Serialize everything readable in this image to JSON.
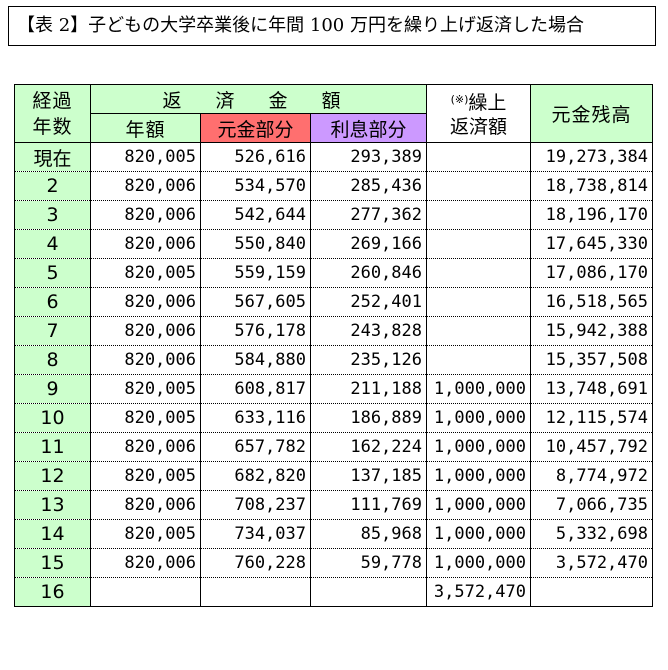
{
  "title": "【表 2】子どもの大学卒業後に年間 100 万円を繰り上げ返済した場合",
  "header": {
    "years_line1": "経過",
    "years_line2": "年数",
    "repay_group": "返 済 金 額",
    "annual": "年額",
    "principal": "元金部分",
    "interest": "利息部分",
    "prepay_mark": "(※)",
    "prepay_line1": "繰上",
    "prepay_line2": "返済額",
    "balance": "元金残高"
  },
  "colors": {
    "header_green": "#ccffcc",
    "principal_red": "#ff6f6f",
    "interest_purple": "#cc99ff"
  },
  "rows": [
    {
      "year": "現在",
      "annual": "820,005",
      "principal": "526,616",
      "interest": "293,389",
      "prepay": "",
      "balance": "19,273,384"
    },
    {
      "year": "2",
      "annual": "820,006",
      "principal": "534,570",
      "interest": "285,436",
      "prepay": "",
      "balance": "18,738,814"
    },
    {
      "year": "3",
      "annual": "820,006",
      "principal": "542,644",
      "interest": "277,362",
      "prepay": "",
      "balance": "18,196,170"
    },
    {
      "year": "4",
      "annual": "820,006",
      "principal": "550,840",
      "interest": "269,166",
      "prepay": "",
      "balance": "17,645,330"
    },
    {
      "year": "5",
      "annual": "820,005",
      "principal": "559,159",
      "interest": "260,846",
      "prepay": "",
      "balance": "17,086,170"
    },
    {
      "year": "6",
      "annual": "820,006",
      "principal": "567,605",
      "interest": "252,401",
      "prepay": "",
      "balance": "16,518,565"
    },
    {
      "year": "7",
      "annual": "820,006",
      "principal": "576,178",
      "interest": "243,828",
      "prepay": "",
      "balance": "15,942,388"
    },
    {
      "year": "8",
      "annual": "820,006",
      "principal": "584,880",
      "interest": "235,126",
      "prepay": "",
      "balance": "15,357,508"
    },
    {
      "year": "9",
      "annual": "820,005",
      "principal": "608,817",
      "interest": "211,188",
      "prepay": "1,000,000",
      "balance": "13,748,691"
    },
    {
      "year": "10",
      "annual": "820,005",
      "principal": "633,116",
      "interest": "186,889",
      "prepay": "1,000,000",
      "balance": "12,115,574"
    },
    {
      "year": "11",
      "annual": "820,006",
      "principal": "657,782",
      "interest": "162,224",
      "prepay": "1,000,000",
      "balance": "10,457,792"
    },
    {
      "year": "12",
      "annual": "820,005",
      "principal": "682,820",
      "interest": "137,185",
      "prepay": "1,000,000",
      "balance": "8,774,972"
    },
    {
      "year": "13",
      "annual": "820,006",
      "principal": "708,237",
      "interest": "111,769",
      "prepay": "1,000,000",
      "balance": "7,066,735"
    },
    {
      "year": "14",
      "annual": "820,005",
      "principal": "734,037",
      "interest": "85,968",
      "prepay": "1,000,000",
      "balance": "5,332,698"
    },
    {
      "year": "15",
      "annual": "820,006",
      "principal": "760,228",
      "interest": "59,778",
      "prepay": "1,000,000",
      "balance": "3,572,470"
    },
    {
      "year": "16",
      "annual": "",
      "principal": "",
      "interest": "",
      "prepay": "3,572,470",
      "balance": ""
    }
  ]
}
